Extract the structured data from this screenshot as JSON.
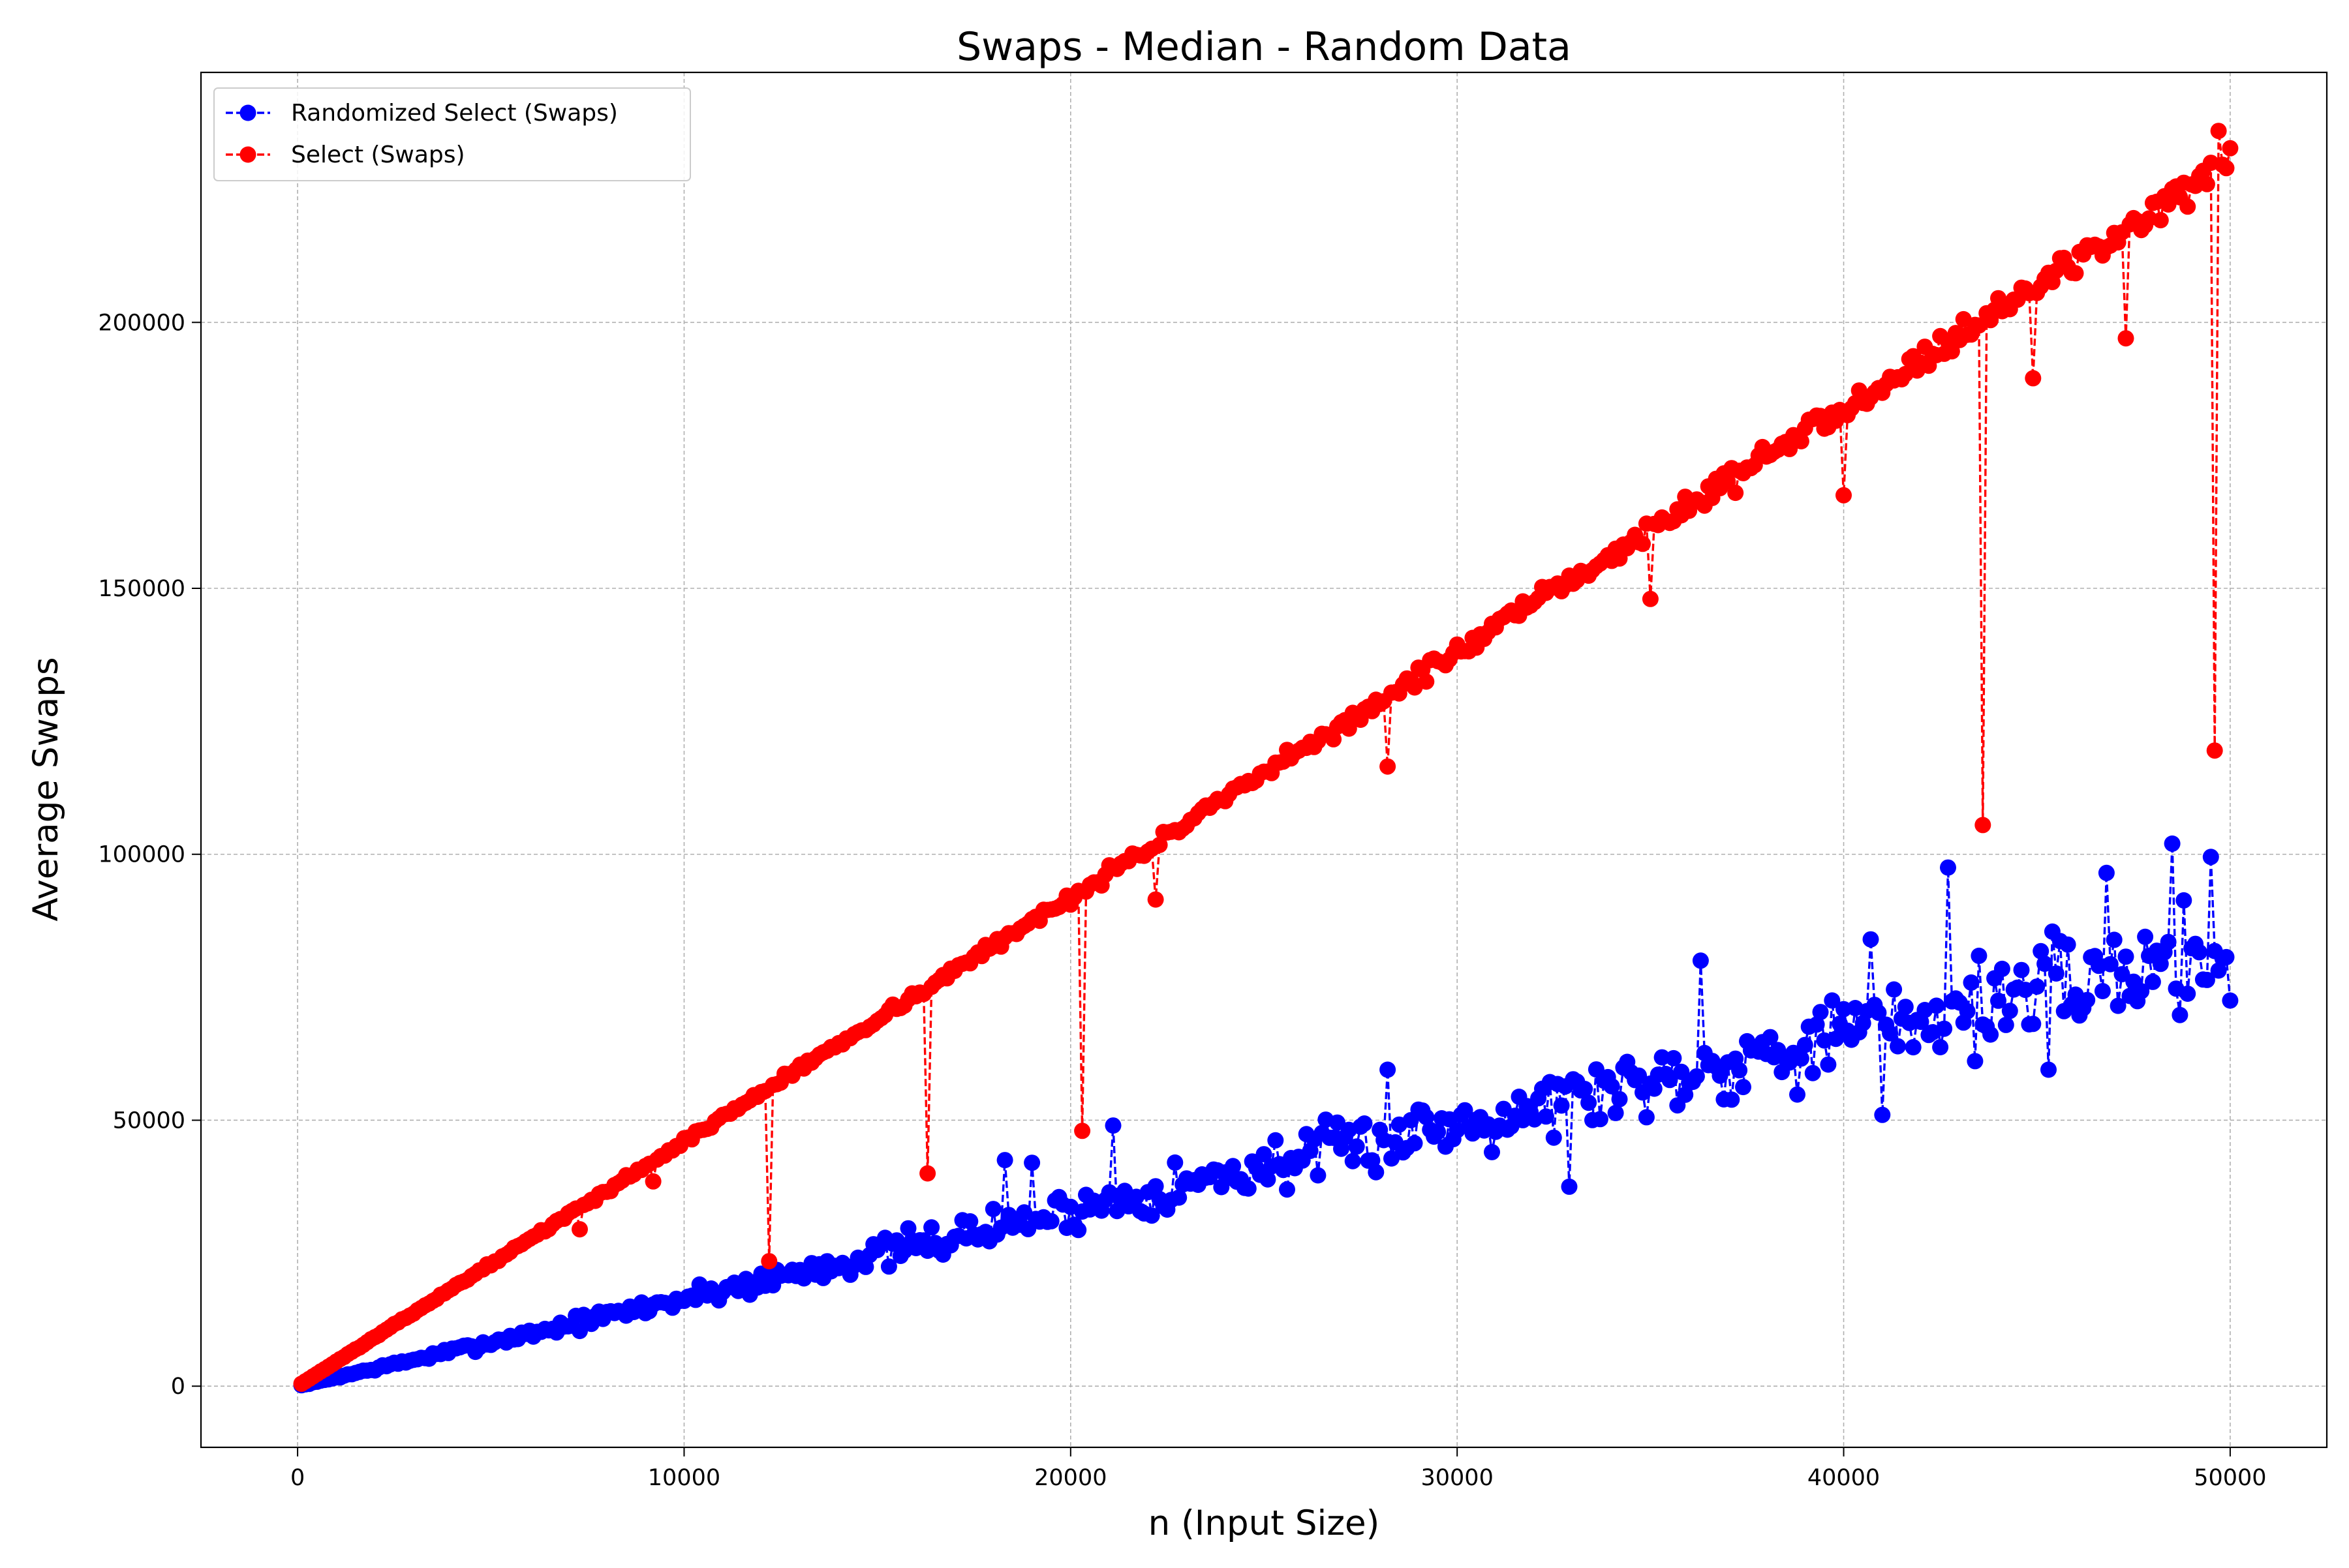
{
  "chart_data": {
    "type": "line",
    "title": "Swaps - Median - Random Data",
    "xlabel": "n (Input Size)",
    "ylabel": "Average Swaps",
    "xlim": [
      -2500,
      52500
    ],
    "ylim": [
      -11500,
      247000
    ],
    "x_ticks": [
      0,
      10000,
      20000,
      30000,
      40000,
      50000
    ],
    "y_ticks": [
      0,
      50000,
      100000,
      150000,
      200000
    ],
    "x_tick_labels": [
      "0",
      "10000",
      "20000",
      "30000",
      "40000",
      "50000"
    ],
    "y_tick_labels": [
      "0",
      "50000",
      "100000",
      "150000",
      "200000"
    ],
    "grid": true,
    "legend_position": "upper left",
    "x_range": {
      "start": 100,
      "end": 50000,
      "step": 100
    },
    "series": [
      {
        "name": "Randomized Select (Swaps)",
        "color": "#0000ff",
        "linestyle": "dashed",
        "marker": "circle",
        "trend": {
          "slope": 1.65,
          "noise_fraction": 0.11,
          "seed": 7
        },
        "highlights": [
          {
            "x": 18300,
            "y": 42500
          },
          {
            "x": 19000,
            "y": 42000
          },
          {
            "x": 21100,
            "y": 49000
          },
          {
            "x": 28200,
            "y": 59500
          },
          {
            "x": 29000,
            "y": 52000
          },
          {
            "x": 32900,
            "y": 37500
          },
          {
            "x": 36300,
            "y": 80000
          },
          {
            "x": 40700,
            "y": 84000
          },
          {
            "x": 41000,
            "y": 51000
          },
          {
            "x": 42700,
            "y": 97500
          },
          {
            "x": 45300,
            "y": 59500
          },
          {
            "x": 46800,
            "y": 96500
          },
          {
            "x": 48500,
            "y": 102000
          },
          {
            "x": 49500,
            "y": 99500
          },
          {
            "x": 50000,
            "y": 72500
          }
        ]
      },
      {
        "name": "Select (Swaps)",
        "color": "#ff0000",
        "linestyle": "dashed",
        "marker": "circle",
        "trend": {
          "slope": 4.6,
          "noise_fraction": 0.012,
          "seed": 13
        },
        "highlights": [
          {
            "x": 7300,
            "y": 29500
          },
          {
            "x": 9200,
            "y": 38500
          },
          {
            "x": 12200,
            "y": 23500
          },
          {
            "x": 16300,
            "y": 40000
          },
          {
            "x": 20300,
            "y": 48000
          },
          {
            "x": 22200,
            "y": 91500
          },
          {
            "x": 28200,
            "y": 116500
          },
          {
            "x": 35000,
            "y": 148000
          },
          {
            "x": 40000,
            "y": 167500
          },
          {
            "x": 43600,
            "y": 105500
          },
          {
            "x": 44900,
            "y": 189500
          },
          {
            "x": 47300,
            "y": 197000
          },
          {
            "x": 49600,
            "y": 119500
          },
          {
            "x": 49700,
            "y": 236000
          },
          {
            "x": 49900,
            "y": 229000
          }
        ]
      }
    ]
  }
}
